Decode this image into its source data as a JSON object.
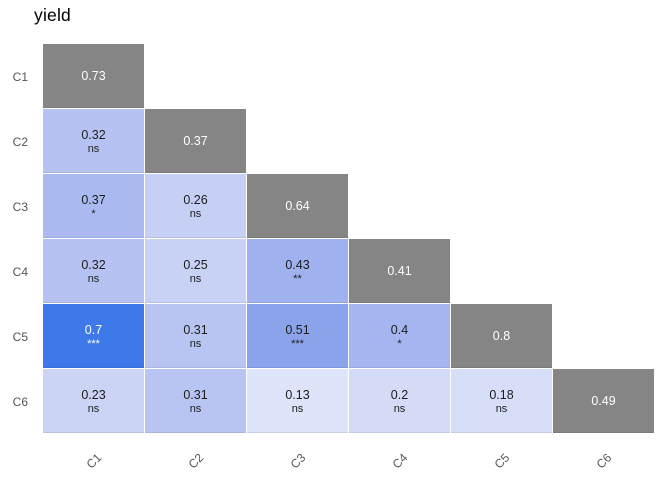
{
  "title": "yield",
  "chart_data": {
    "type": "heatmap",
    "subtype": "correlation-matrix-lower-triangle",
    "title": "yield",
    "x_labels": [
      "C1",
      "C2",
      "C3",
      "C4",
      "C5",
      "C6"
    ],
    "y_labels": [
      "C1",
      "C2",
      "C3",
      "C4",
      "C5",
      "C6"
    ],
    "legend": "none",
    "significance_codes": [
      "ns",
      "*",
      "**",
      "***"
    ],
    "colors": {
      "diagonal_fill": "#858585",
      "light_text": "#ffffff",
      "dark_text": "#1c1c1c",
      "background": "#ffffff",
      "axis_text": "#555555"
    },
    "cells": [
      {
        "row": "C1",
        "col": "C1",
        "value": "0.73",
        "sig": "",
        "bg": "#858585",
        "fg": "#ffffff"
      },
      {
        "row": "C2",
        "col": "C1",
        "value": "0.32",
        "sig": "ns",
        "bg": "#b6c3f2",
        "fg": "#1c1c1c"
      },
      {
        "row": "C2",
        "col": "C2",
        "value": "0.37",
        "sig": "",
        "bg": "#858585",
        "fg": "#ffffff"
      },
      {
        "row": "C3",
        "col": "C1",
        "value": "0.37",
        "sig": "*",
        "bg": "#aabaf0",
        "fg": "#1c1c1c"
      },
      {
        "row": "C3",
        "col": "C2",
        "value": "0.26",
        "sig": "ns",
        "bg": "#c6d0f5",
        "fg": "#1c1c1c"
      },
      {
        "row": "C3",
        "col": "C3",
        "value": "0.64",
        "sig": "",
        "bg": "#858585",
        "fg": "#ffffff"
      },
      {
        "row": "C4",
        "col": "C1",
        "value": "0.32",
        "sig": "ns",
        "bg": "#b6c3f2",
        "fg": "#1c1c1c"
      },
      {
        "row": "C4",
        "col": "C2",
        "value": "0.25",
        "sig": "ns",
        "bg": "#c8d2f5",
        "fg": "#1c1c1c"
      },
      {
        "row": "C4",
        "col": "C3",
        "value": "0.43",
        "sig": "**",
        "bg": "#9fb1ee",
        "fg": "#1c1c1c"
      },
      {
        "row": "C4",
        "col": "C4",
        "value": "0.41",
        "sig": "",
        "bg": "#858585",
        "fg": "#ffffff"
      },
      {
        "row": "C5",
        "col": "C1",
        "value": "0.7",
        "sig": "***",
        "bg": "#3e79e9",
        "fg": "#ffffff"
      },
      {
        "row": "C5",
        "col": "C2",
        "value": "0.31",
        "sig": "ns",
        "bg": "#b8c5f2",
        "fg": "#1c1c1c"
      },
      {
        "row": "C5",
        "col": "C3",
        "value": "0.51",
        "sig": "***",
        "bg": "#8ba3eb",
        "fg": "#1c1c1c"
      },
      {
        "row": "C5",
        "col": "C4",
        "value": "0.4",
        "sig": "*",
        "bg": "#a4b5ef",
        "fg": "#1c1c1c"
      },
      {
        "row": "C5",
        "col": "C5",
        "value": "0.8",
        "sig": "",
        "bg": "#858585",
        "fg": "#ffffff"
      },
      {
        "row": "C6",
        "col": "C1",
        "value": "0.23",
        "sig": "ns",
        "bg": "#cbd4f5",
        "fg": "#1c1c1c"
      },
      {
        "row": "C6",
        "col": "C2",
        "value": "0.31",
        "sig": "ns",
        "bg": "#b8c5f2",
        "fg": "#1c1c1c"
      },
      {
        "row": "C6",
        "col": "C3",
        "value": "0.13",
        "sig": "ns",
        "bg": "#dee4f9",
        "fg": "#1c1c1c"
      },
      {
        "row": "C6",
        "col": "C4",
        "value": "0.2",
        "sig": "ns",
        "bg": "#d3dbf7",
        "fg": "#1c1c1c"
      },
      {
        "row": "C6",
        "col": "C5",
        "value": "0.18",
        "sig": "ns",
        "bg": "#d7def8",
        "fg": "#1c1c1c"
      },
      {
        "row": "C6",
        "col": "C6",
        "value": "0.49",
        "sig": "",
        "bg": "#858585",
        "fg": "#ffffff"
      }
    ]
  }
}
